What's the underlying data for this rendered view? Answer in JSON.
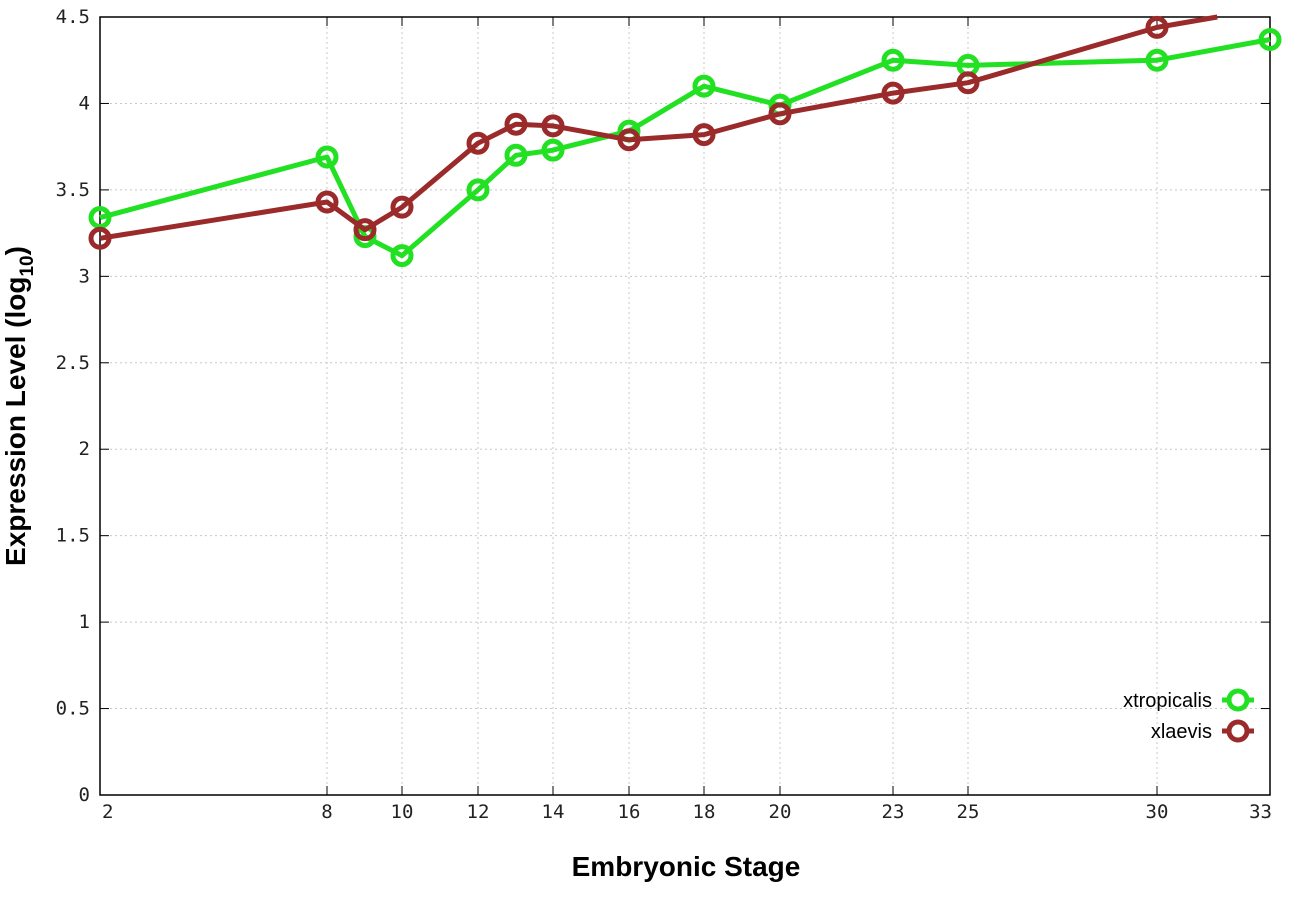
{
  "chart_data": {
    "type": "line",
    "xlabel": "Embryonic Stage",
    "ylabel_main": "Expression Level (log",
    "ylabel_sub": "10",
    "ylabel_close": ")",
    "ylim": [
      0,
      4.5
    ],
    "xlim": [
      2,
      33
    ],
    "x_scale": "linear (stage axis)",
    "grid": true,
    "legend_position": "bottom-right",
    "x_ticks": [
      2,
      8,
      10,
      12,
      14,
      16,
      18,
      20,
      23,
      25,
      30,
      33
    ],
    "y_ticks": [
      "0",
      "0.5",
      "1",
      "1.5",
      "2",
      "2.5",
      "3",
      "3.5",
      "4",
      "4.5"
    ],
    "series": [
      {
        "name": "xtropicalis",
        "color": "#22e022",
        "x": [
          2,
          8,
          9,
          10,
          12,
          13,
          14,
          16,
          18,
          20,
          23,
          25,
          30,
          33
        ],
        "y": [
          3.34,
          3.69,
          3.23,
          3.12,
          3.5,
          3.7,
          3.73,
          3.84,
          4.1,
          3.99,
          4.25,
          4.22,
          4.25,
          4.37
        ]
      },
      {
        "name": "xlaevis",
        "color": "#9b2a2a",
        "x": [
          2,
          8,
          9,
          10,
          12,
          13,
          14,
          16,
          18,
          20,
          23,
          25,
          30,
          31.6
        ],
        "y": [
          3.22,
          3.43,
          3.27,
          3.4,
          3.77,
          3.88,
          3.87,
          3.79,
          3.82,
          3.94,
          4.06,
          4.12,
          4.44,
          4.5
        ],
        "markers_through_index": 12
      }
    ]
  }
}
